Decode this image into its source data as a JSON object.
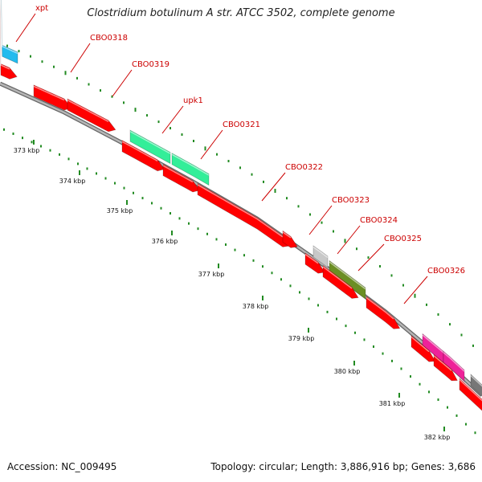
{
  "header": {
    "title": "Clostridium botulinum A str. ATCC 3502, complete genome"
  },
  "footer": {
    "accession": "Accession: NC_009495",
    "summary": "Topology: circular; Length: 3,886,916 bp; Genes: 3,686"
  },
  "colors": {
    "label_color": "#cc0000",
    "tick_color": "#228b22",
    "backbone": "#999999",
    "red_gene": "#ff0000",
    "cyan_gene": "#22bbee",
    "green_gene": "#33ee99",
    "gray_gene": "#c8c8c8",
    "olive_gene": "#6b8e23",
    "pink_gene": "#ee2299",
    "dark_gray_gene": "#777777"
  },
  "scale": {
    "labels": [
      "373 kbp",
      "374 kbp",
      "375 kbp",
      "376 kbp",
      "377 kbp",
      "378 kbp",
      "379 kbp",
      "380 kbp",
      "381 kbp",
      "382 kbp"
    ]
  },
  "gene_labels": [
    {
      "name": "xpt"
    },
    {
      "name": "CBO0318"
    },
    {
      "name": "CBO0319"
    },
    {
      "name": "upk1"
    },
    {
      "name": "CBO0321"
    },
    {
      "name": "CBO0322"
    },
    {
      "name": "CBO0323"
    },
    {
      "name": "CBO0324"
    },
    {
      "name": "CBO0325"
    },
    {
      "name": "CBO0326"
    }
  ]
}
